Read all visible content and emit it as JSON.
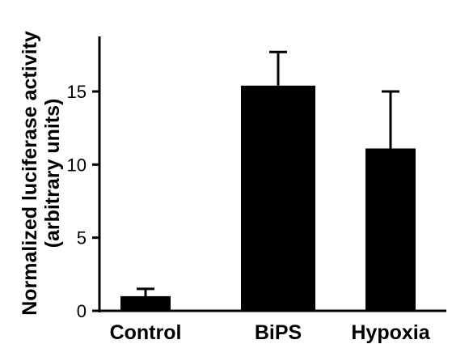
{
  "chart_data": {
    "type": "bar",
    "categories": [
      "Control",
      "BiPS",
      "Hypoxia"
    ],
    "values": [
      1.0,
      15.4,
      11.1
    ],
    "errors_upper": [
      0.5,
      2.3,
      3.9
    ],
    "ylabel_line1": "Normalized luciferase activity",
    "ylabel_line2": "(arbitrary units)",
    "ylim": [
      0,
      17.5
    ],
    "yticks": [
      0,
      5,
      10,
      15
    ],
    "bar_color": "#000000",
    "grid": false
  }
}
